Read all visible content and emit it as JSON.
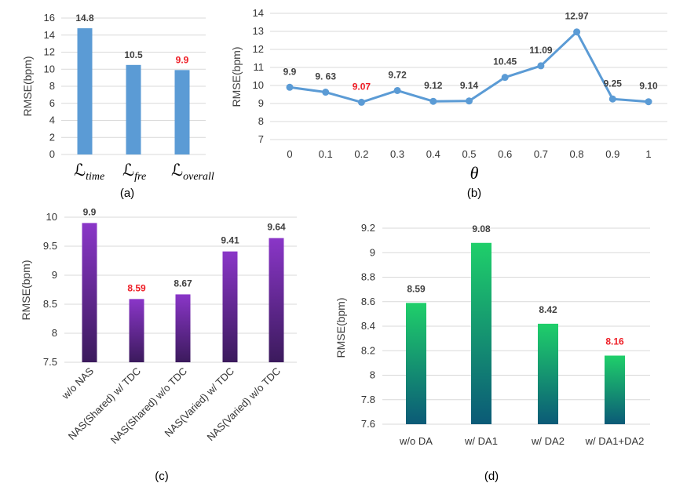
{
  "chart_data": [
    {
      "id": "a",
      "type": "bar",
      "caption": "(a)",
      "ylabel": "RMSE(bpm)",
      "ylim": [
        0,
        16
      ],
      "yticks": [
        0,
        2,
        4,
        6,
        8,
        10,
        12,
        14,
        16
      ],
      "grid": true,
      "bar_color": "#5b9bd5",
      "categories": [
        {
          "symbol": "ℒ",
          "subscript": "time"
        },
        {
          "symbol": "ℒ",
          "subscript": "fre"
        },
        {
          "symbol": "ℒ",
          "subscript": "overall"
        }
      ],
      "values": [
        14.8,
        10.5,
        9.9
      ],
      "labels": [
        "14.8",
        "10.5",
        "9.9"
      ],
      "highlight": [
        false,
        false,
        true
      ]
    },
    {
      "id": "b",
      "type": "line",
      "caption": "(b)",
      "ylabel": "RMSE(bpm)",
      "xlabel": "θ",
      "ylim": [
        7,
        14
      ],
      "yticks": [
        7,
        8,
        9,
        10,
        11,
        12,
        13,
        14
      ],
      "grid": true,
      "line_color": "#5b9bd5",
      "x": [
        "0",
        "0.1",
        "0.2",
        "0.3",
        "0.4",
        "0.5",
        "0.6",
        "0.7",
        "0.8",
        "0.9",
        "1"
      ],
      "values": [
        9.9,
        9.63,
        9.07,
        9.72,
        9.12,
        9.14,
        10.45,
        11.09,
        12.97,
        9.25,
        9.1
      ],
      "labels": [
        "9.9",
        "9. 63",
        "9.07",
        "9.72",
        "9.12",
        "9.14",
        "10.45",
        "11.09",
        "12.97",
        "9.25",
        "9.10"
      ],
      "highlight": [
        false,
        false,
        true,
        false,
        false,
        false,
        false,
        false,
        false,
        false,
        false
      ]
    },
    {
      "id": "c",
      "type": "bar",
      "caption": "(c)",
      "ylabel": "RMSE(bpm)",
      "ylim": [
        7.5,
        10
      ],
      "yticks": [
        "7.5",
        "8",
        "8.5",
        "9",
        "9.5",
        "10"
      ],
      "grid": true,
      "gradient": [
        "#8a36c8",
        "#3b1a5c"
      ],
      "categories": [
        "w/o NAS",
        "NAS(Shared) w/ TDC",
        "NAS(Shared) w/o TDC",
        "NAS(Varied) w/ TDC",
        "NAS(Varied) w/o TDC"
      ],
      "values": [
        9.9,
        8.59,
        8.67,
        9.41,
        9.64
      ],
      "labels": [
        "9.9",
        "8.59",
        "8.67",
        "9.41",
        "9.64"
      ],
      "highlight": [
        false,
        true,
        false,
        false,
        false
      ]
    },
    {
      "id": "d",
      "type": "bar",
      "caption": "(d)",
      "ylabel": "RMSE(bpm)",
      "ylim": [
        7.6,
        9.2
      ],
      "yticks": [
        "7.6",
        "7.8",
        "8",
        "8.2",
        "8.4",
        "8.6",
        "8.8",
        "9",
        "9.2"
      ],
      "grid": true,
      "gradient": [
        "#1fcf6a",
        "#0b5a77"
      ],
      "categories": [
        "w/o DA",
        "w/ DA1",
        "w/ DA2",
        "w/ DA1+DA2"
      ],
      "values": [
        8.59,
        9.08,
        8.42,
        8.16
      ],
      "labels": [
        "8.59",
        "9.08",
        "8.42",
        "8.16"
      ],
      "highlight": [
        false,
        false,
        false,
        true
      ]
    }
  ]
}
